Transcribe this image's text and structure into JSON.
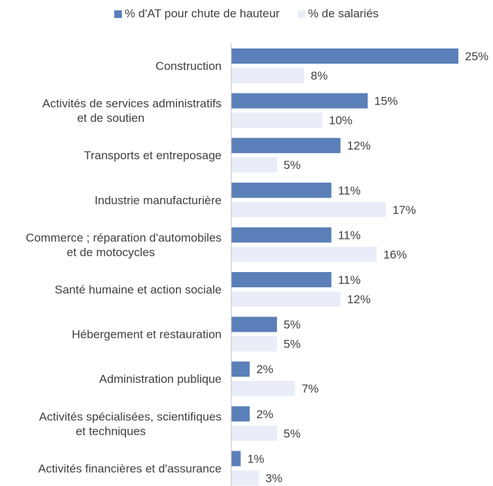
{
  "chart_data": {
    "type": "bar",
    "orientation": "horizontal",
    "legend_position": "top",
    "grid": false,
    "xlim": [
      0,
      25
    ],
    "categories": [
      [
        "Construction"
      ],
      [
        "Activités de services administratifs",
        "et de soutien"
      ],
      [
        "Transports et entreposage"
      ],
      [
        "Industrie manufacturière"
      ],
      [
        "Commerce ; réparation d'automobiles",
        "et de motocycles"
      ],
      [
        "Santé humaine et action sociale"
      ],
      [
        "Hébergement et restauration"
      ],
      [
        "Administration publique"
      ],
      [
        "Activités spécialisées, scientifiques",
        "et techniques"
      ],
      [
        "Activités financières et d'assurance"
      ]
    ],
    "series": [
      {
        "name": "% d'AT pour chute de hauteur",
        "color": "#5b7fb8",
        "values": [
          25,
          15,
          12,
          11,
          11,
          11,
          5,
          2,
          2,
          1
        ],
        "labels": [
          "25%",
          "15%",
          "12%",
          "11%",
          "11%",
          "11%",
          "5%",
          "2%",
          "2%",
          "1%"
        ]
      },
      {
        "name": "% de salariés",
        "color": "#e9edf7",
        "values": [
          8,
          10,
          5,
          17,
          16,
          12,
          5,
          7,
          5,
          3
        ],
        "labels": [
          "8%",
          "10%",
          "5%",
          "17%",
          "16%",
          "12%",
          "5%",
          "7%",
          "5%",
          "3%"
        ]
      }
    ]
  }
}
